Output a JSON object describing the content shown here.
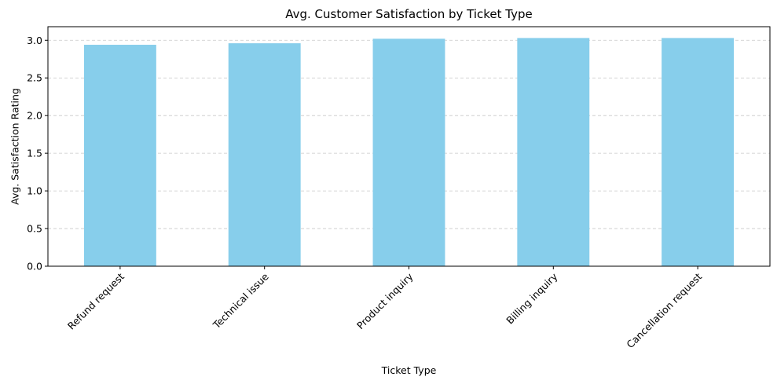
{
  "chart_data": {
    "type": "bar",
    "title": "Avg. Customer Satisfaction by Ticket Type",
    "xlabel": "Ticket Type",
    "ylabel": "Avg. Satisfaction Rating",
    "categories": [
      "Refund request",
      "Technical issue",
      "Product inquiry",
      "Billing inquiry",
      "Cancellation request"
    ],
    "values": [
      2.94,
      2.96,
      3.02,
      3.03,
      3.03
    ],
    "ylim": [
      0,
      3.18
    ],
    "yticks": [
      0.0,
      0.5,
      1.0,
      1.5,
      2.0,
      2.5,
      3.0
    ],
    "ytick_labels": [
      "0.0",
      "0.5",
      "1.0",
      "1.5",
      "2.0",
      "2.5",
      "3.0"
    ],
    "grid": {
      "axis": "y",
      "style": "dashed"
    },
    "bar_color": "#87ceeb",
    "x_tick_rotation_deg": 45
  }
}
